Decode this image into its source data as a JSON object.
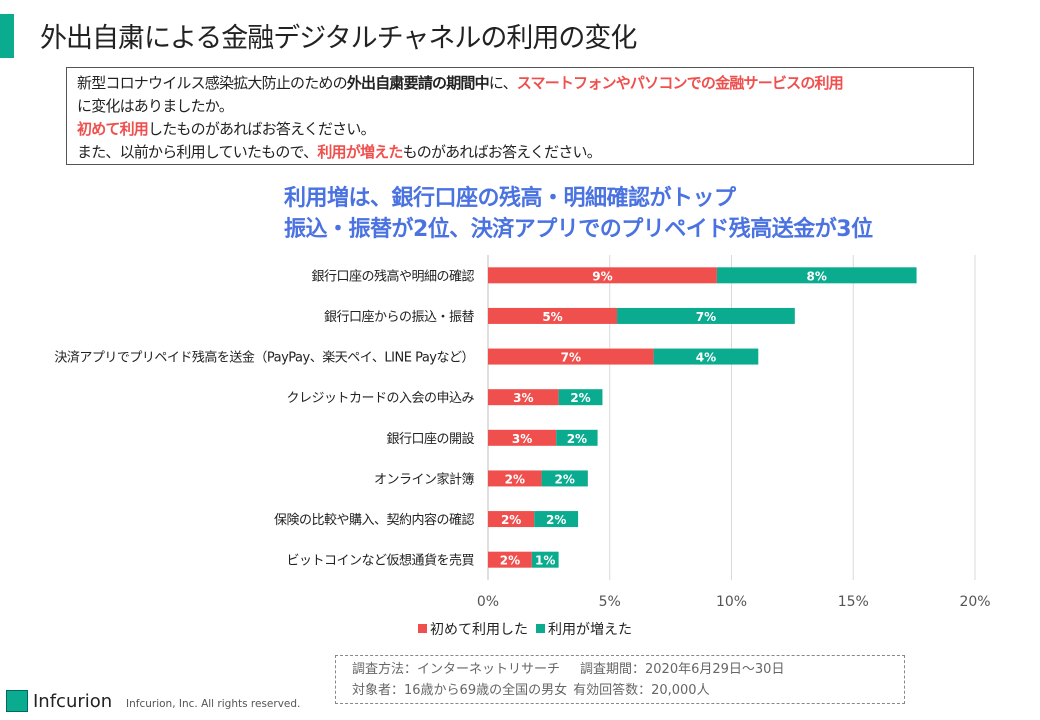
{
  "header": {
    "title": "外出自粛による金融デジタルチャネルの利用の変化"
  },
  "question": {
    "lines": [
      [
        {
          "text": "新型コロナウイルス感染拡大防止のための",
          "style": "normal"
        },
        {
          "text": "外出自粛要請の期間中",
          "style": "bold"
        },
        {
          "text": "に、",
          "style": "normal"
        },
        {
          "text": "スマートフォンやパソコンでの金融サービスの利用",
          "style": "red"
        }
      ],
      [
        {
          "text": "に変化はありましたか。",
          "style": "normal"
        }
      ],
      [
        {
          "text": "初めて利用",
          "style": "red"
        },
        {
          "text": "したものがあればお答えください。",
          "style": "normal"
        }
      ],
      [
        {
          "text": "また、以前から利用していたもので、",
          "style": "normal"
        },
        {
          "text": "利用が増えた",
          "style": "red"
        },
        {
          "text": "ものがあればお答えください。",
          "style": "normal"
        }
      ]
    ]
  },
  "headline": {
    "line1": "利用増は、銀行口座の残高・明細確認がトップ",
    "line2": "振込・振替が2位、決済アプリでのプリペイド残高送金が3位"
  },
  "colors": {
    "accent": "#0aab8e",
    "first_time": "#f0504d",
    "increased": "#0aab8e",
    "headline": "#4a72e0",
    "grid": "#d9d9d9"
  },
  "chart_data": {
    "type": "bar",
    "orientation": "horizontal",
    "stacked": true,
    "title": "",
    "xlabel": "",
    "ylabel": "",
    "xlim": [
      0,
      20
    ],
    "x_ticks": [
      0,
      5,
      10,
      15,
      20
    ],
    "x_tick_labels": [
      "0%",
      "5%",
      "10%",
      "15%",
      "20%"
    ],
    "grid": true,
    "legend_position": "bottom",
    "categories": [
      "銀行口座の残高や明細の確認",
      "銀行口座からの振込・振替",
      "決済アプリでプリペイド残高を送金（PayPay、楽天ペイ、LINE Payなど）",
      "クレジットカードの入会の申込み",
      "銀行口座の開設",
      "オンライン家計簿",
      "保険の比較や購入、契約内容の確認",
      "ビットコインなど仮想通貨を売買"
    ],
    "series": [
      {
        "name": "初めて利用した",
        "color": "#f0504d",
        "values": [
          9.4,
          5.3,
          6.8,
          2.9,
          2.8,
          2.2,
          1.9,
          1.8
        ],
        "labels": [
          "9%",
          "5%",
          "7%",
          "3%",
          "3%",
          "2%",
          "2%",
          "2%"
        ]
      },
      {
        "name": "利用が増えた",
        "color": "#0aab8e",
        "values": [
          8.2,
          7.3,
          4.3,
          1.8,
          1.7,
          1.9,
          1.8,
          1.1
        ],
        "labels": [
          "8%",
          "7%",
          "4%",
          "2%",
          "2%",
          "2%",
          "2%",
          "1%"
        ]
      }
    ]
  },
  "footer": {
    "method": "調査方法：インターネットリサーチ",
    "period": "調査期間：2020年6月29日～30日",
    "target": "対象者：16歳から69歳の全国の男女",
    "responses": "有効回答数：20,000人"
  },
  "branding": {
    "logo_text": "Infcurion",
    "copyright": "Infcurion, Inc.  All rights reserved."
  }
}
